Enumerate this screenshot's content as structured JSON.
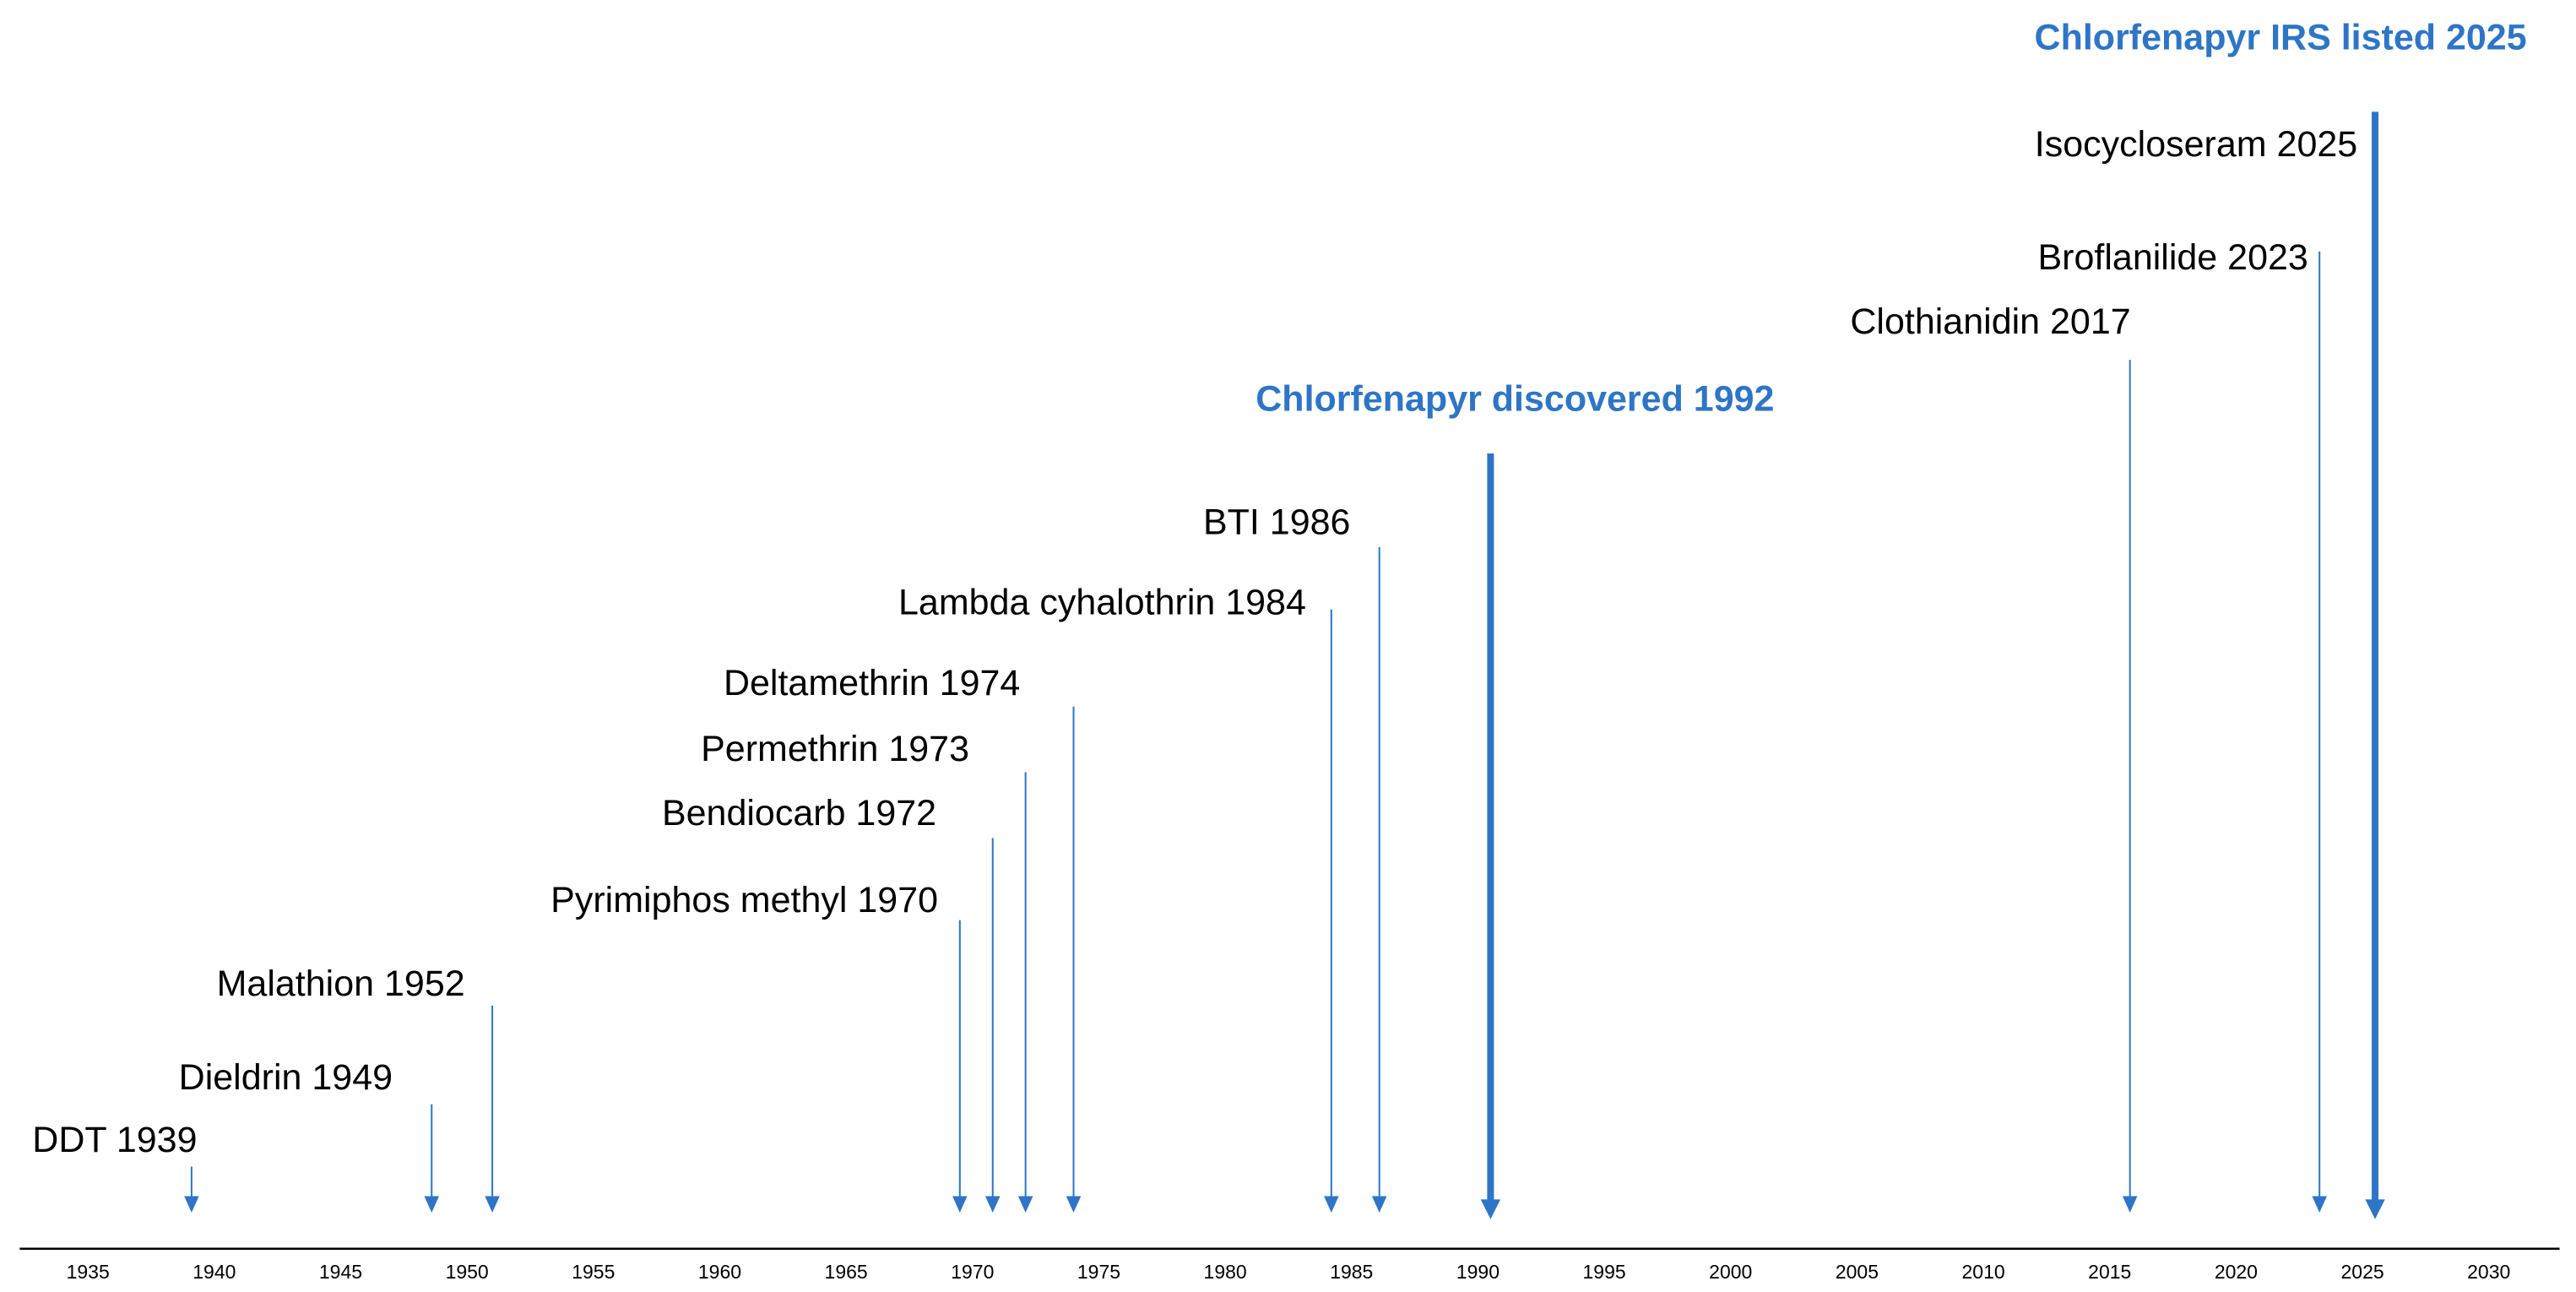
{
  "chart_data": {
    "type": "timeline",
    "color": "#2e75c6",
    "text_color": "#000000",
    "xlim": [
      1932.3,
      2032.8
    ],
    "xticks": [
      1935,
      1940,
      1945,
      1950,
      1955,
      1960,
      1965,
      1970,
      1975,
      1980,
      1985,
      1990,
      1995,
      2000,
      2005,
      2010,
      2015,
      2020,
      2025,
      2030
    ],
    "events": [
      {
        "label": "DDT 1939",
        "x": 1939.1
      },
      {
        "label": "Dieldrin 1949",
        "x": 1948.6
      },
      {
        "label": "Malathion 1952",
        "x": 1951.0
      },
      {
        "label": "Pyrimiphos methyl 1970",
        "x": 1969.5
      },
      {
        "label": "Bendiocarb 1972",
        "x": 1970.8
      },
      {
        "label": "Permethrin 1973",
        "x": 1972.1
      },
      {
        "label": "Deltamethrin 1974",
        "x": 1974.0
      },
      {
        "label": "Lambda cyhalothrin 1984",
        "x": 1984.2
      },
      {
        "label": "BTI 1986",
        "x": 1986.1
      },
      {
        "label": "Chlorfenapyr discovered 1992",
        "x": 1990.5,
        "highlight": true
      },
      {
        "label": "Clothianidin 2017",
        "x": 2015.8
      },
      {
        "label": "Broflanilide 2023",
        "x": 2023.3
      },
      {
        "label": "Isocycloseram 2025"
      },
      {
        "label": "Chlorfenapyr IRS listed 2025",
        "x": 2025.5,
        "highlight": true
      }
    ]
  }
}
